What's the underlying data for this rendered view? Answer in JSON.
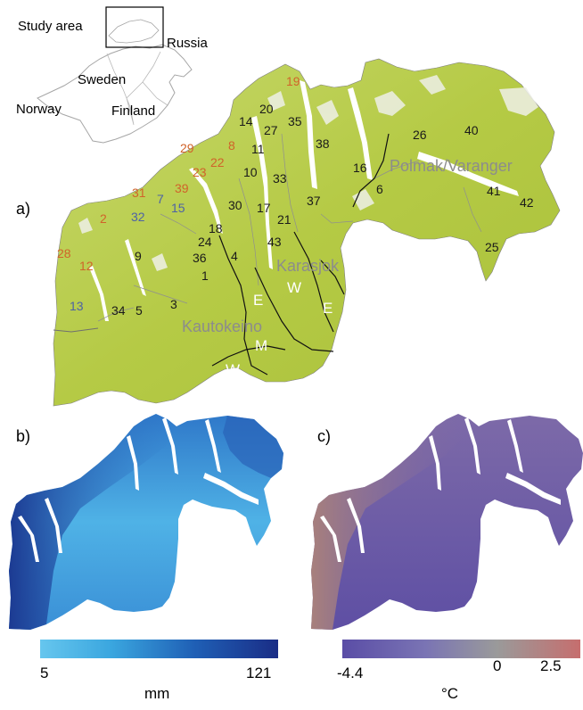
{
  "inset": {
    "study_area": "Study area",
    "russia": "Russia",
    "sweden": "Sweden",
    "norway": "Norway",
    "finland": "Finland"
  },
  "panels": {
    "a": "a)",
    "b": "b)",
    "c": "c)"
  },
  "regions": {
    "polmak": "Polmak/Varanger",
    "karasjok": "Karasjok",
    "kautokeino": "Kautokeino"
  },
  "zones": [
    "E",
    "W",
    "E",
    "M",
    "W"
  ],
  "districts_black": [
    "20",
    "35",
    "14",
    "27",
    "11",
    "38",
    "26",
    "40",
    "10",
    "33",
    "16",
    "6",
    "30",
    "17",
    "21",
    "37",
    "41",
    "42",
    "18",
    "43",
    "24",
    "9",
    "36",
    "4",
    "1",
    "25",
    "34",
    "5",
    "3"
  ],
  "districts_orange": [
    "19",
    "29",
    "8",
    "22",
    "23",
    "39",
    "31",
    "2",
    "28",
    "12"
  ],
  "districts_blue": [
    "7",
    "15",
    "32",
    "13"
  ],
  "colorbar_b": {
    "min": "5",
    "max": "121",
    "unit": "mm",
    "colors": [
      "#66c6ee",
      "#3aa6df",
      "#1f5fb5",
      "#1a2d86"
    ]
  },
  "colorbar_c": {
    "min": "-4.4",
    "mid": "0",
    "max": "2.5",
    "unit": "°C",
    "colors": [
      "#5a4da6",
      "#7a74b4",
      "#9a9a9a",
      "#c66e6e"
    ]
  },
  "colors": {
    "land_a": "#b7cc4a",
    "land_a_light": "#d3df8a",
    "orange_label": "#d0632a",
    "blue_label": "#4d62a6",
    "region_label": "#8c8c8c"
  }
}
